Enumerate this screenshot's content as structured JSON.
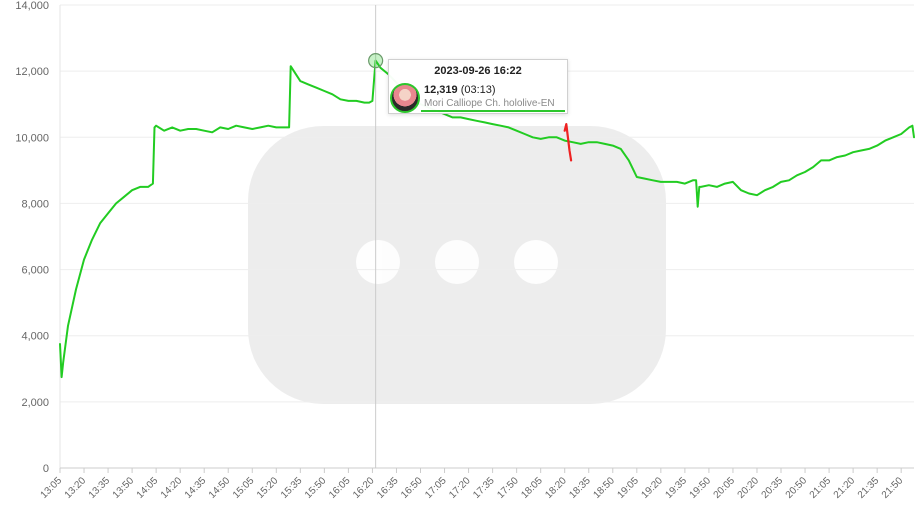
{
  "chart_data": {
    "type": "line",
    "title": "",
    "xlabel": "",
    "ylabel": "",
    "ylim": [
      0,
      14000
    ],
    "y_ticks": [
      "0",
      "2,000",
      "4,000",
      "6,000",
      "8,000",
      "10,000",
      "12,000",
      "14,000"
    ],
    "x_ticks": [
      "13:05",
      "13:20",
      "13:35",
      "13:50",
      "14:05",
      "14:20",
      "14:35",
      "14:50",
      "15:05",
      "15:20",
      "15:35",
      "15:50",
      "16:05",
      "16:20",
      "16:35",
      "16:50",
      "17:05",
      "17:20",
      "17:35",
      "17:50",
      "18:05",
      "18:20",
      "18:35",
      "18:50",
      "19:05",
      "19:20",
      "19:35",
      "19:50",
      "20:05",
      "20:20",
      "20:35",
      "20:50",
      "21:05",
      "21:20",
      "21:35",
      "21:50"
    ],
    "grid": true,
    "legend": "none",
    "series": [
      {
        "color": "#22cc22",
        "x": [
          "13:05",
          "13:06",
          "13:07",
          "13:10",
          "13:15",
          "13:20",
          "13:25",
          "13:30",
          "13:35",
          "13:40",
          "13:45",
          "13:50",
          "13:55",
          "14:00",
          "14:03",
          "14:04",
          "14:05",
          "14:10",
          "14:15",
          "14:20",
          "14:25",
          "14:30",
          "14:35",
          "14:40",
          "14:45",
          "14:50",
          "14:55",
          "15:00",
          "15:05",
          "15:10",
          "15:15",
          "15:20",
          "15:25",
          "15:28",
          "15:29",
          "15:35",
          "15:40",
          "15:45",
          "15:50",
          "15:55",
          "16:00",
          "16:05",
          "16:10",
          "16:15",
          "16:18",
          "16:20",
          "16:22",
          "16:25",
          "16:30",
          "16:35",
          "16:40",
          "16:45",
          "16:50",
          "16:55",
          "17:00",
          "17:05",
          "17:10",
          "17:15",
          "17:20",
          "17:25",
          "17:30",
          "17:35",
          "17:40",
          "17:45",
          "17:50",
          "17:55",
          "18:00",
          "18:05",
          "18:10",
          "18:15",
          "18:20",
          "18:25",
          "18:30",
          "18:35",
          "18:40",
          "18:45",
          "18:50",
          "18:55",
          "19:00",
          "19:05",
          "19:10",
          "19:15",
          "19:20",
          "19:25",
          "19:30",
          "19:35",
          "19:40",
          "19:42",
          "19:43",
          "19:44",
          "19:45",
          "19:50",
          "19:55",
          "20:00",
          "20:05",
          "20:10",
          "20:15",
          "20:20",
          "20:25",
          "20:30",
          "20:35",
          "20:40",
          "20:45",
          "20:50",
          "20:55",
          "21:00",
          "21:05",
          "21:10",
          "21:15",
          "21:20",
          "21:25",
          "21:30",
          "21:35",
          "21:40",
          "21:45",
          "21:50",
          "21:55",
          "21:57",
          "21:58"
        ],
        "y": [
          3750,
          2750,
          3200,
          4300,
          5400,
          6300,
          6900,
          7400,
          7700,
          8000,
          8200,
          8400,
          8500,
          8500,
          8600,
          10300,
          10350,
          10200,
          10300,
          10200,
          10250,
          10250,
          10200,
          10150,
          10300,
          10250,
          10350,
          10300,
          10250,
          10300,
          10350,
          10300,
          10300,
          10300,
          12150,
          11700,
          11600,
          11500,
          11400,
          11300,
          11150,
          11100,
          11100,
          11050,
          11050,
          11100,
          12319,
          12100,
          11900,
          11650,
          11350,
          11100,
          11000,
          10900,
          10800,
          10700,
          10600,
          10600,
          10550,
          10500,
          10450,
          10400,
          10350,
          10300,
          10200,
          10100,
          10000,
          9950,
          10000,
          10000,
          9900,
          9850,
          9800,
          9850,
          9850,
          9800,
          9750,
          9650,
          9300,
          8800,
          8750,
          8700,
          8650,
          8650,
          8650,
          8600,
          8700,
          8700,
          7900,
          8500,
          8500,
          8550,
          8500,
          8600,
          8650,
          8400,
          8300,
          8250,
          8400,
          8500,
          8650,
          8700,
          8850,
          8950,
          9100,
          9300,
          9300,
          9400,
          9450,
          9550,
          9600,
          9650,
          9750,
          9900,
          10000,
          10100,
          10300,
          10350,
          10000
        ]
      },
      {
        "color": "#ee2222",
        "x": [
          "18:20",
          "18:21",
          "18:22",
          "18:23",
          "18:24"
        ],
        "y": [
          10200,
          10400,
          10000,
          9600,
          9300
        ]
      }
    ],
    "highlight": {
      "x": "16:22",
      "y": 12319
    }
  },
  "tooltip": {
    "title": "2023-09-26 16:22",
    "value": "12,319",
    "duration": "(03:13)",
    "channel": "Mori Calliope Ch. hololive-EN"
  }
}
